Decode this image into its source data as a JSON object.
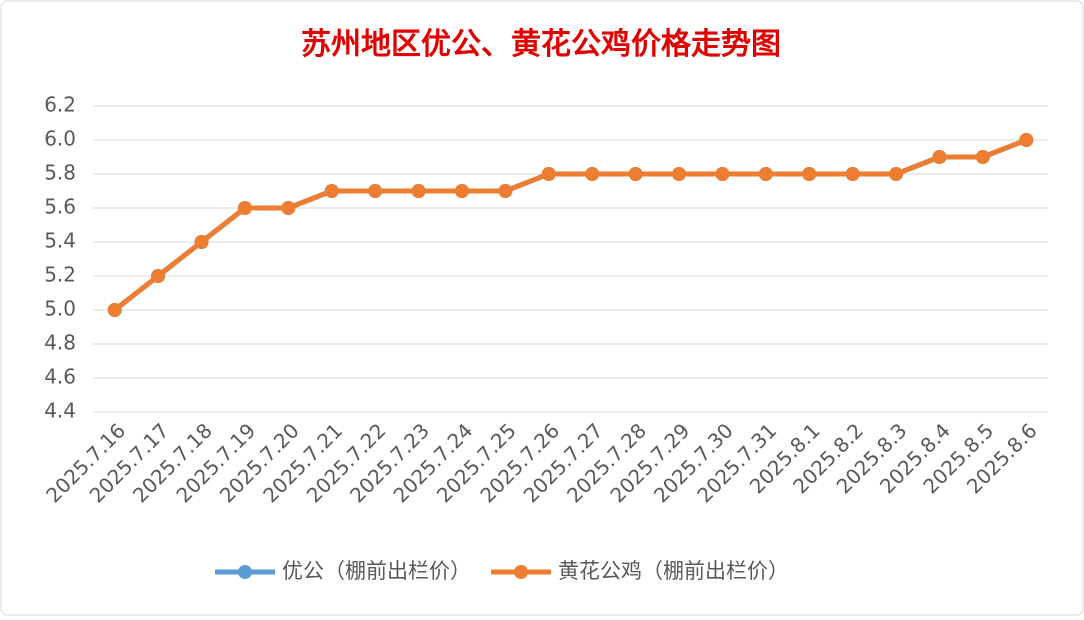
{
  "chart_data": {
    "type": "line",
    "title": "苏州地区优公、黄花公鸡价格走势图",
    "categories": [
      "2025.7.16",
      "2025.7.17",
      "2025.7.18",
      "2025.7.19",
      "2025.7.20",
      "2025.7.21",
      "2025.7.22",
      "2025.7.23",
      "2025.7.24",
      "2025.7.25",
      "2025.7.26",
      "2025.7.27",
      "2025.7.28",
      "2025.7.29",
      "2025.7.30",
      "2025.7.31",
      "2025.8.1",
      "2025.8.2",
      "2025.8.3",
      "2025.8.4",
      "2025.8.5",
      "2025.8.6"
    ],
    "series": [
      {
        "name": "优公（棚前出栏价）",
        "color": "#5b9bd5",
        "values": [
          5.0,
          5.2,
          5.4,
          5.6,
          5.6,
          5.7,
          5.7,
          5.7,
          5.7,
          5.7,
          5.8,
          5.8,
          5.8,
          5.8,
          5.8,
          5.8,
          5.8,
          5.8,
          5.8,
          5.9,
          5.9,
          6.0
        ]
      },
      {
        "name": "黄花公鸡（棚前出栏价）",
        "color": "#ed7d31",
        "values": [
          5.0,
          5.2,
          5.4,
          5.6,
          5.6,
          5.7,
          5.7,
          5.7,
          5.7,
          5.7,
          5.8,
          5.8,
          5.8,
          5.8,
          5.8,
          5.8,
          5.8,
          5.8,
          5.8,
          5.9,
          5.9,
          6.0
        ]
      }
    ],
    "ylim": [
      4.4,
      6.2
    ],
    "yticks": [
      4.4,
      4.6,
      4.8,
      {
        "value": 5,
        "label": "5.0"
      },
      5.2,
      5.4,
      5.6,
      5.8,
      {
        "value": 6,
        "label": "6.0"
      },
      6.2
    ],
    "grid": true,
    "legend": "bottom"
  }
}
